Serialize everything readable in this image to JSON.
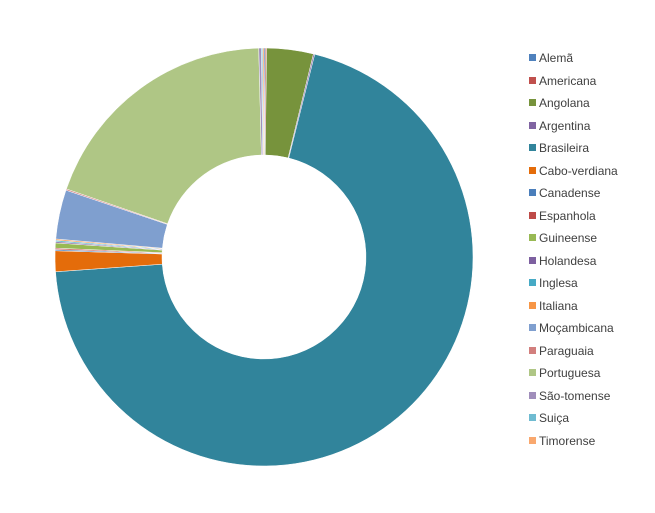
{
  "chart_data": {
    "type": "pie",
    "subtype": "donut",
    "title": "",
    "legend_position": "right",
    "categories": [
      "Alemã",
      "Americana",
      "Angolana",
      "Argentina",
      "Brasileira",
      "Cabo-verdiana",
      "Canadense",
      "Espanhola",
      "Guineense",
      "Holandesa",
      "Inglesa",
      "Italiana",
      "Moçambicana",
      "Paraguaia",
      "Portuguesa",
      "São-tomense",
      "Suiça",
      "Timorense"
    ],
    "values": [
      0.1,
      0.1,
      3.6,
      0.1,
      69.9,
      1.6,
      0.1,
      0.1,
      0.4,
      0.1,
      0.1,
      0.1,
      3.8,
      0.1,
      19.3,
      0.2,
      0.1,
      0.1
    ],
    "colors": [
      "#4F81BD",
      "#C0504D",
      "#77933C",
      "#8064A2",
      "#31849B",
      "#E46C0A",
      "#4A7EBB",
      "#BE4B48",
      "#98B954",
      "#7D60A0",
      "#46AAC5",
      "#F79646",
      "#7F9FCF",
      "#D27F7D",
      "#AFC685",
      "#A08EBB",
      "#6FBBD1",
      "#F9A86E"
    ]
  }
}
